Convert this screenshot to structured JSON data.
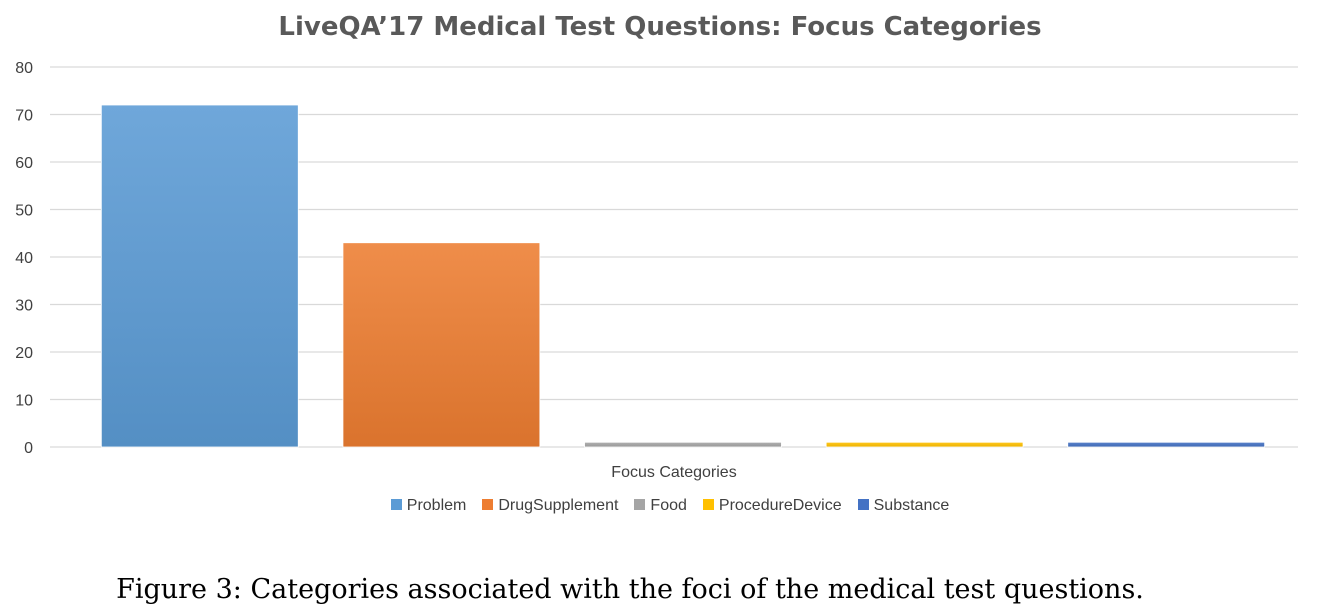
{
  "chart_data": {
    "type": "bar",
    "title": "LiveQA’17 Medical Test Questions: Focus Categories",
    "xlabel": "Focus Categories",
    "ylabel": "",
    "ylim": [
      0,
      80
    ],
    "yticks": [
      0,
      10,
      20,
      30,
      40,
      50,
      60,
      70,
      80
    ],
    "grid": true,
    "legend_position": "bottom",
    "series": [
      {
        "name": "Problem",
        "values": [
          72
        ],
        "color": "#5B9BD5"
      },
      {
        "name": "DrugSupplement",
        "values": [
          43
        ],
        "color": "#ED7D31"
      },
      {
        "name": "Food",
        "values": [
          1
        ],
        "color": "#A5A5A5"
      },
      {
        "name": "ProcedureDevice",
        "values": [
          1
        ],
        "color": "#FFC000"
      },
      {
        "name": "Substance",
        "values": [
          1
        ],
        "color": "#4472C4"
      }
    ]
  },
  "caption": "Figure 3: Categories associated with the foci of the medical test questions."
}
